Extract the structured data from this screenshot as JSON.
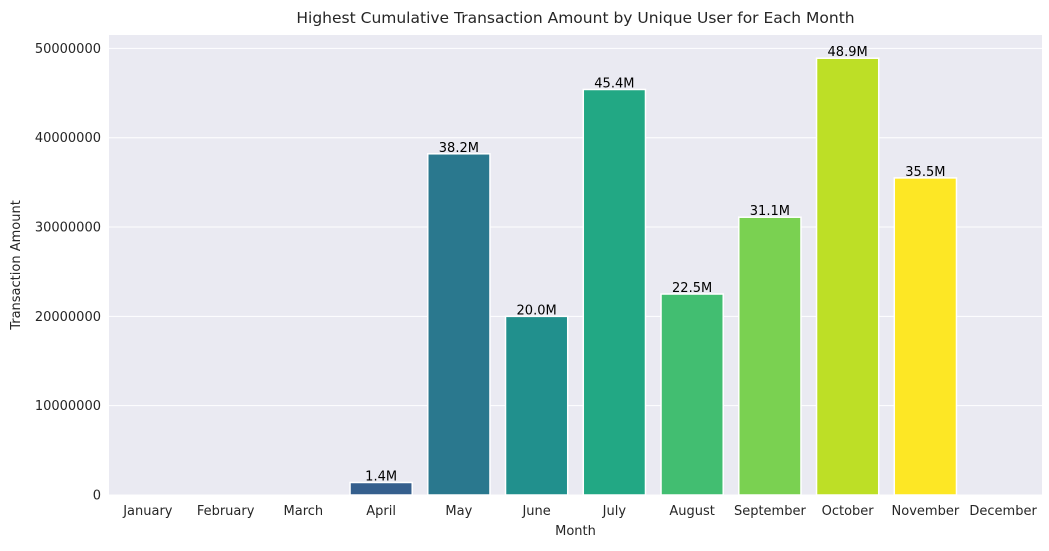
{
  "chart_data": {
    "type": "bar",
    "title": "Highest Cumulative Transaction Amount by Unique User for Each Month",
    "xlabel": "Month",
    "ylabel": "Transaction Amount",
    "categories": [
      "January",
      "February",
      "March",
      "April",
      "May",
      "June",
      "July",
      "August",
      "September",
      "October",
      "November",
      "December"
    ],
    "values": [
      0,
      0,
      0,
      1400000,
      38200000,
      20000000,
      45400000,
      22500000,
      31100000,
      48900000,
      35500000,
      0
    ],
    "data_labels": [
      "",
      "",
      "",
      "1.4M",
      "38.2M",
      "20.0M",
      "45.4M",
      "22.5M",
      "31.1M",
      "48.9M",
      "35.5M",
      ""
    ],
    "bar_colors": [
      "#440154",
      "#482475",
      "#414487",
      "#355f8d",
      "#2a788e",
      "#21908d",
      "#22a884",
      "#42be71",
      "#7ad151",
      "#bddf26",
      "#fde725",
      "#fde725"
    ],
    "ylim": [
      0,
      51500000
    ],
    "yticks": [
      0,
      10000000,
      20000000,
      30000000,
      40000000,
      50000000
    ],
    "ytick_labels": [
      "0",
      "10000000",
      "20000000",
      "30000000",
      "40000000",
      "50000000"
    ],
    "grid": true,
    "colors": {
      "plot_background": "#eaeaf2",
      "grid": "#ffffff",
      "bar_edge": "#ffffff",
      "text": "#262626"
    }
  }
}
